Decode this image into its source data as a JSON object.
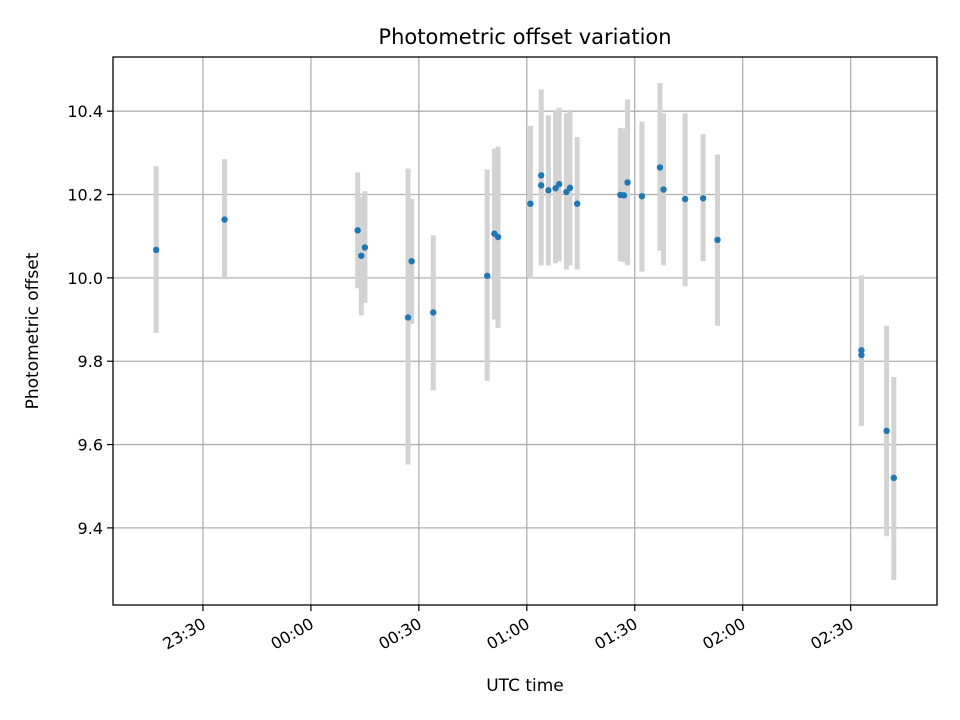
{
  "chart_data": {
    "type": "scatter",
    "title": "Photometric offset variation",
    "xlabel": "UTC time",
    "ylabel": "Photometric offset",
    "x_axis": {
      "kind": "time",
      "range": [
        "23:05",
        "02:54"
      ],
      "ticks": [
        "23:30",
        "00:00",
        "00:30",
        "01:00",
        "01:30",
        "02:00",
        "02:30"
      ]
    },
    "y_axis": {
      "range": [
        9.215,
        10.53
      ],
      "ticks": [
        "9.4",
        "9.6",
        "9.8",
        "10.0",
        "10.2",
        "10.4"
      ]
    },
    "grid": true,
    "colors": {
      "points": "#1f77b4",
      "errorbars": "#d3d3d3"
    },
    "points": [
      {
        "x": "23:17",
        "y": 10.067,
        "lo": 9.868,
        "hi": 10.268
      },
      {
        "x": "23:36",
        "y": 10.14,
        "lo": 9.997,
        "hi": 10.285
      },
      {
        "x": "00:13",
        "y": 10.114,
        "lo": 9.975,
        "hi": 10.253
      },
      {
        "x": "00:14",
        "y": 10.053,
        "lo": 9.91,
        "hi": 10.195
      },
      {
        "x": "00:15",
        "y": 10.073,
        "lo": 9.94,
        "hi": 10.208
      },
      {
        "x": "00:27",
        "y": 9.905,
        "lo": 9.552,
        "hi": 10.262
      },
      {
        "x": "00:28",
        "y": 10.04,
        "lo": 9.89,
        "hi": 10.19
      },
      {
        "x": "00:34",
        "y": 9.917,
        "lo": 9.73,
        "hi": 10.102
      },
      {
        "x": "00:49",
        "y": 10.005,
        "lo": 9.753,
        "hi": 10.26
      },
      {
        "x": "00:51",
        "y": 10.106,
        "lo": 9.9,
        "hi": 10.31
      },
      {
        "x": "00:52",
        "y": 10.098,
        "lo": 9.88,
        "hi": 10.315
      },
      {
        "x": "01:01",
        "y": 10.178,
        "lo": 9.998,
        "hi": 10.365
      },
      {
        "x": "01:04",
        "y": 10.222,
        "lo": 10.05,
        "hi": 10.4
      },
      {
        "x": "01:04",
        "y": 10.246,
        "lo": 10.03,
        "hi": 10.452
      },
      {
        "x": "01:06",
        "y": 10.21,
        "lo": 10.03,
        "hi": 10.39
      },
      {
        "x": "01:08",
        "y": 10.215,
        "lo": 10.035,
        "hi": 10.4
      },
      {
        "x": "01:09",
        "y": 10.225,
        "lo": 10.04,
        "hi": 10.408
      },
      {
        "x": "01:11",
        "y": 10.206,
        "lo": 10.02,
        "hi": 10.395
      },
      {
        "x": "01:12",
        "y": 10.216,
        "lo": 10.03,
        "hi": 10.4
      },
      {
        "x": "01:14",
        "y": 10.178,
        "lo": 10.02,
        "hi": 10.338
      },
      {
        "x": "01:26",
        "y": 10.199,
        "lo": 10.04,
        "hi": 10.36
      },
      {
        "x": "01:27",
        "y": 10.198,
        "lo": 10.038,
        "hi": 10.358
      },
      {
        "x": "01:28",
        "y": 10.229,
        "lo": 10.03,
        "hi": 10.428
      },
      {
        "x": "01:32",
        "y": 10.196,
        "lo": 10.015,
        "hi": 10.375
      },
      {
        "x": "01:37",
        "y": 10.265,
        "lo": 10.065,
        "hi": 10.468
      },
      {
        "x": "01:38",
        "y": 10.212,
        "lo": 10.03,
        "hi": 10.395
      },
      {
        "x": "01:44",
        "y": 10.189,
        "lo": 9.98,
        "hi": 10.395
      },
      {
        "x": "01:49",
        "y": 10.191,
        "lo": 10.04,
        "hi": 10.345
      },
      {
        "x": "01:53",
        "y": 10.091,
        "lo": 9.885,
        "hi": 10.296
      },
      {
        "x": "02:33",
        "y": 9.815,
        "lo": 9.645,
        "hi": 9.985
      },
      {
        "x": "02:33",
        "y": 9.826,
        "lo": 9.645,
        "hi": 10.006
      },
      {
        "x": "02:40",
        "y": 9.633,
        "lo": 9.38,
        "hi": 9.885
      },
      {
        "x": "02:42",
        "y": 9.52,
        "lo": 9.275,
        "hi": 9.762
      }
    ]
  }
}
